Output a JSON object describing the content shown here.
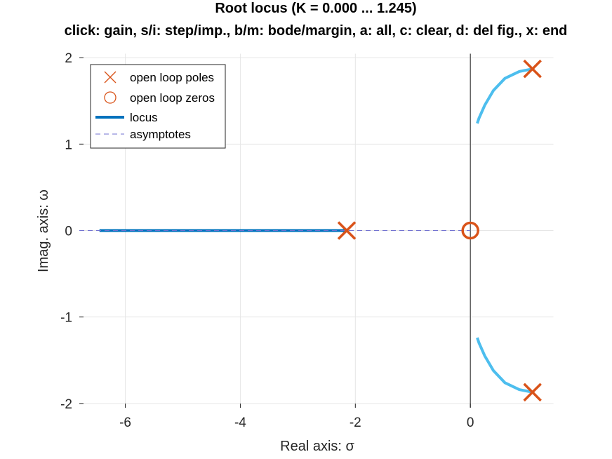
{
  "chart_data": {
    "type": "line",
    "title": "Root locus (K = 0.000 ... 1.245)",
    "subtitle": "click: gain, s/i: step/imp., b/m: bode/margin, a: all, c: clear, d: del fig., x: end",
    "xlabel": "Real axis: σ",
    "ylabel": "Imag. axis: ω",
    "xlim": [
      -6.8,
      1.45
    ],
    "ylim": [
      -2.05,
      2.05
    ],
    "xticks": [
      -6,
      -4,
      -2,
      0
    ],
    "yticks": [
      -2,
      -1,
      0,
      1,
      2
    ],
    "xtick_labels": [
      "-6",
      "-4",
      "-2",
      "0"
    ],
    "ytick_labels": [
      "-2",
      "-1",
      "0",
      "1",
      "2"
    ],
    "grid": true,
    "legend_position": "top-left",
    "legend": [
      {
        "label": "open loop poles",
        "marker": "x",
        "color": "#D95319"
      },
      {
        "label": "open loop zeros",
        "marker": "o",
        "color": "#D95319"
      },
      {
        "label": "locus",
        "style": "solid",
        "color": "#0072BD"
      },
      {
        "label": "asymptotes",
        "style": "dashed",
        "color": "#7070D0"
      }
    ],
    "open_loop_poles": [
      {
        "re": -2.15,
        "im": 0
      },
      {
        "re": 1.08,
        "im": 1.87
      },
      {
        "re": 1.08,
        "im": -1.87
      }
    ],
    "open_loop_zeros": [
      {
        "re": 0,
        "im": 0
      }
    ],
    "series": [
      {
        "role": "locus",
        "color": "#0072BD",
        "points": [
          [
            -2.15,
            0
          ],
          [
            -6.45,
            0
          ]
        ]
      },
      {
        "role": "locus",
        "color": "#4DBEEE",
        "points": [
          [
            1.08,
            1.87
          ],
          [
            0.85,
            1.84
          ],
          [
            0.6,
            1.76
          ],
          [
            0.4,
            1.62
          ],
          [
            0.25,
            1.45
          ],
          [
            0.15,
            1.3
          ],
          [
            0.12,
            1.24
          ]
        ]
      },
      {
        "role": "locus",
        "color": "#4DBEEE",
        "points": [
          [
            1.08,
            -1.87
          ],
          [
            0.85,
            -1.84
          ],
          [
            0.6,
            -1.76
          ],
          [
            0.4,
            -1.62
          ],
          [
            0.25,
            -1.45
          ],
          [
            0.15,
            -1.3
          ],
          [
            0.12,
            -1.24
          ]
        ]
      },
      {
        "role": "asymptote",
        "color": "#7070D0",
        "points": [
          [
            -6.8,
            0
          ],
          [
            0,
            0
          ]
        ]
      }
    ],
    "colors": {
      "pole": "#D95319",
      "zero": "#D95319",
      "locus_real": "#0072BD",
      "locus_complex": "#4DBEEE",
      "asymptote": "#7070D0",
      "imag_axis": "#404040",
      "grid": "#e6e6e6"
    }
  }
}
